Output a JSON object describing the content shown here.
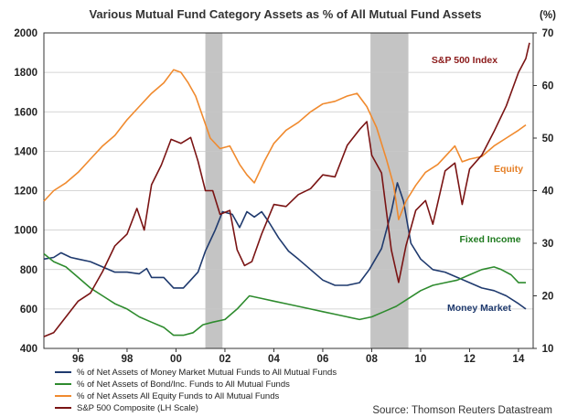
{
  "chart_data": {
    "type": "line",
    "title": "Various Mutual Fund Category Assets as % of All Mutual Fund Assets",
    "left_axis": {
      "min": 400,
      "max": 2000,
      "ticks": [
        400,
        600,
        800,
        1000,
        1200,
        1400,
        1600,
        1800,
        2000
      ]
    },
    "right_axis": {
      "unit": "(%)",
      "min": 10,
      "max": 70,
      "ticks": [
        10,
        20,
        30,
        40,
        50,
        60,
        70
      ]
    },
    "x_axis": {
      "min": 1994.6,
      "max": 2014.6,
      "ticks": [
        {
          "value": 1996,
          "label": "96"
        },
        {
          "value": 1998,
          "label": "98"
        },
        {
          "value": 2000,
          "label": "00"
        },
        {
          "value": 2002,
          "label": "02"
        },
        {
          "value": 2004,
          "label": "04"
        },
        {
          "value": 2006,
          "label": "06"
        },
        {
          "value": 2008,
          "label": "08"
        },
        {
          "value": 2010,
          "label": "10"
        },
        {
          "value": 2012,
          "label": "12"
        },
        {
          "value": 2014,
          "label": "14"
        }
      ]
    },
    "recessions": [
      {
        "start": 2001.2,
        "end": 2001.9
      },
      {
        "start": 2007.95,
        "end": 2009.5
      }
    ],
    "series": [
      {
        "name": "% of Net Assets of Money Market Mutual Funds to All Mutual Funds",
        "label": "Money Market",
        "label_color": "#1f3a6e",
        "axis": "right",
        "color": "#1f3a6e",
        "points": [
          [
            1994.6,
            27.0
          ],
          [
            1995.0,
            27.3
          ],
          [
            1995.3,
            28.2
          ],
          [
            1995.7,
            27.3
          ],
          [
            1996.0,
            27.0
          ],
          [
            1996.5,
            26.5
          ],
          [
            1997.0,
            25.5
          ],
          [
            1997.5,
            24.5
          ],
          [
            1998.0,
            24.5
          ],
          [
            1998.5,
            24.2
          ],
          [
            1998.8,
            25.2
          ],
          [
            1999.0,
            23.5
          ],
          [
            1999.5,
            23.5
          ],
          [
            1999.9,
            21.5
          ],
          [
            2000.3,
            21.5
          ],
          [
            2000.6,
            23.0
          ],
          [
            2000.9,
            24.5
          ],
          [
            2001.2,
            28.5
          ],
          [
            2001.6,
            32.5
          ],
          [
            2001.9,
            36.0
          ],
          [
            2002.3,
            35.5
          ],
          [
            2002.6,
            33.0
          ],
          [
            2002.9,
            36.0
          ],
          [
            2003.2,
            35.0
          ],
          [
            2003.5,
            36.0
          ],
          [
            2003.8,
            34.0
          ],
          [
            2004.2,
            31.0
          ],
          [
            2004.6,
            28.5
          ],
          [
            2005.0,
            27.0
          ],
          [
            2005.5,
            25.0
          ],
          [
            2006.0,
            23.0
          ],
          [
            2006.5,
            22.0
          ],
          [
            2007.0,
            22.0
          ],
          [
            2007.5,
            22.5
          ],
          [
            2007.9,
            25.0
          ],
          [
            2008.4,
            29.0
          ],
          [
            2008.8,
            36.0
          ],
          [
            2009.05,
            41.5
          ],
          [
            2009.3,
            38.0
          ],
          [
            2009.6,
            30.0
          ],
          [
            2010.0,
            27.0
          ],
          [
            2010.5,
            25.0
          ],
          [
            2011.0,
            24.5
          ],
          [
            2011.5,
            23.5
          ],
          [
            2012.0,
            22.5
          ],
          [
            2012.5,
            21.5
          ],
          [
            2013.0,
            21.0
          ],
          [
            2013.5,
            20.0
          ],
          [
            2014.0,
            18.5
          ],
          [
            2014.3,
            17.5
          ]
        ]
      },
      {
        "name": "% of Net Assets of Bond/Inc. Funds to All Mutual Funds",
        "label": "Fixed Income",
        "label_color": "#1e7a1e",
        "axis": "right",
        "color": "#2e8b2e",
        "points": [
          [
            1994.6,
            28.0
          ],
          [
            1995.0,
            26.5
          ],
          [
            1995.5,
            25.5
          ],
          [
            1996.0,
            23.5
          ],
          [
            1996.5,
            21.5
          ],
          [
            1997.0,
            20.0
          ],
          [
            1997.5,
            18.5
          ],
          [
            1998.0,
            17.5
          ],
          [
            1998.5,
            16.0
          ],
          [
            1999.0,
            15.0
          ],
          [
            1999.5,
            14.0
          ],
          [
            1999.9,
            12.5
          ],
          [
            2000.3,
            12.5
          ],
          [
            2000.7,
            13.0
          ],
          [
            2001.1,
            14.5
          ],
          [
            2001.5,
            15.0
          ],
          [
            2002.0,
            15.5
          ],
          [
            2002.5,
            17.5
          ],
          [
            2003.0,
            20.0
          ],
          [
            2003.5,
            19.5
          ],
          [
            2004.0,
            19.0
          ],
          [
            2004.5,
            18.5
          ],
          [
            2005.0,
            18.0
          ],
          [
            2005.5,
            17.5
          ],
          [
            2006.0,
            17.0
          ],
          [
            2006.5,
            16.5
          ],
          [
            2007.0,
            16.0
          ],
          [
            2007.5,
            15.5
          ],
          [
            2008.0,
            16.0
          ],
          [
            2008.5,
            17.0
          ],
          [
            2009.0,
            18.0
          ],
          [
            2009.5,
            19.5
          ],
          [
            2010.0,
            21.0
          ],
          [
            2010.5,
            22.0
          ],
          [
            2011.0,
            22.5
          ],
          [
            2011.5,
            23.0
          ],
          [
            2012.0,
            24.0
          ],
          [
            2012.5,
            25.0
          ],
          [
            2013.0,
            25.5
          ],
          [
            2013.3,
            25.0
          ],
          [
            2013.7,
            24.0
          ],
          [
            2014.0,
            22.5
          ],
          [
            2014.3,
            22.5
          ]
        ]
      },
      {
        "name": "% of Net Assets All Equity Funds to All Mutual Funds",
        "label": "Equity",
        "label_color": "#e57e24",
        "axis": "right",
        "color": "#f08a2e",
        "points": [
          [
            1994.6,
            38.0
          ],
          [
            1995.0,
            40.0
          ],
          [
            1995.5,
            41.5
          ],
          [
            1996.0,
            43.5
          ],
          [
            1996.5,
            46.0
          ],
          [
            1997.0,
            48.5
          ],
          [
            1997.5,
            50.5
          ],
          [
            1998.0,
            53.5
          ],
          [
            1998.5,
            56.0
          ],
          [
            1999.0,
            58.5
          ],
          [
            1999.5,
            60.5
          ],
          [
            1999.9,
            63.0
          ],
          [
            2000.2,
            62.5
          ],
          [
            2000.5,
            60.5
          ],
          [
            2000.8,
            58.0
          ],
          [
            2001.1,
            54.0
          ],
          [
            2001.4,
            50.0
          ],
          [
            2001.8,
            48.0
          ],
          [
            2002.2,
            48.5
          ],
          [
            2002.6,
            45.0
          ],
          [
            2002.9,
            43.0
          ],
          [
            2003.2,
            41.5
          ],
          [
            2003.6,
            45.5
          ],
          [
            2004.0,
            49.0
          ],
          [
            2004.5,
            51.5
          ],
          [
            2005.0,
            53.0
          ],
          [
            2005.5,
            55.0
          ],
          [
            2006.0,
            56.5
          ],
          [
            2006.5,
            57.0
          ],
          [
            2007.0,
            58.0
          ],
          [
            2007.4,
            58.5
          ],
          [
            2007.8,
            56.0
          ],
          [
            2008.2,
            52.0
          ],
          [
            2008.6,
            46.0
          ],
          [
            2008.9,
            41.0
          ],
          [
            2009.1,
            34.5
          ],
          [
            2009.4,
            38.0
          ],
          [
            2009.8,
            41.0
          ],
          [
            2010.2,
            43.5
          ],
          [
            2010.7,
            45.0
          ],
          [
            2011.1,
            47.0
          ],
          [
            2011.4,
            48.5
          ],
          [
            2011.7,
            45.5
          ],
          [
            2012.0,
            46.0
          ],
          [
            2012.5,
            46.5
          ],
          [
            2013.0,
            48.5
          ],
          [
            2013.5,
            50.0
          ],
          [
            2014.0,
            51.5
          ],
          [
            2014.3,
            52.5
          ]
        ]
      },
      {
        "name": "S&P 500 Composite (LH Scale)",
        "label": "S&P 500 Index",
        "label_color": "#8b1a1a",
        "axis": "left",
        "color": "#7a1414",
        "points": [
          [
            1994.6,
            460
          ],
          [
            1995.0,
            480
          ],
          [
            1995.5,
            560
          ],
          [
            1996.0,
            640
          ],
          [
            1996.5,
            680
          ],
          [
            1997.0,
            790
          ],
          [
            1997.5,
            920
          ],
          [
            1998.0,
            980
          ],
          [
            1998.4,
            1110
          ],
          [
            1998.7,
            1000
          ],
          [
            1999.0,
            1230
          ],
          [
            1999.4,
            1330
          ],
          [
            1999.8,
            1460
          ],
          [
            2000.2,
            1440
          ],
          [
            2000.6,
            1470
          ],
          [
            2000.9,
            1350
          ],
          [
            2001.2,
            1200
          ],
          [
            2001.5,
            1200
          ],
          [
            2001.8,
            1080
          ],
          [
            2002.2,
            1100
          ],
          [
            2002.5,
            900
          ],
          [
            2002.8,
            820
          ],
          [
            2003.1,
            840
          ],
          [
            2003.5,
            980
          ],
          [
            2004.0,
            1130
          ],
          [
            2004.5,
            1120
          ],
          [
            2005.0,
            1180
          ],
          [
            2005.5,
            1210
          ],
          [
            2006.0,
            1280
          ],
          [
            2006.5,
            1270
          ],
          [
            2007.0,
            1430
          ],
          [
            2007.5,
            1510
          ],
          [
            2007.8,
            1550
          ],
          [
            2008.0,
            1380
          ],
          [
            2008.4,
            1290
          ],
          [
            2008.8,
            900
          ],
          [
            2009.1,
            735
          ],
          [
            2009.4,
            920
          ],
          [
            2009.8,
            1100
          ],
          [
            2010.2,
            1150
          ],
          [
            2010.5,
            1030
          ],
          [
            2011.0,
            1300
          ],
          [
            2011.4,
            1340
          ],
          [
            2011.7,
            1130
          ],
          [
            2012.0,
            1310
          ],
          [
            2012.5,
            1380
          ],
          [
            2013.0,
            1500
          ],
          [
            2013.5,
            1630
          ],
          [
            2014.0,
            1800
          ],
          [
            2014.3,
            1870
          ],
          [
            2014.45,
            1950
          ]
        ]
      }
    ],
    "source": "Source: Thomson Reuters Datastream"
  }
}
